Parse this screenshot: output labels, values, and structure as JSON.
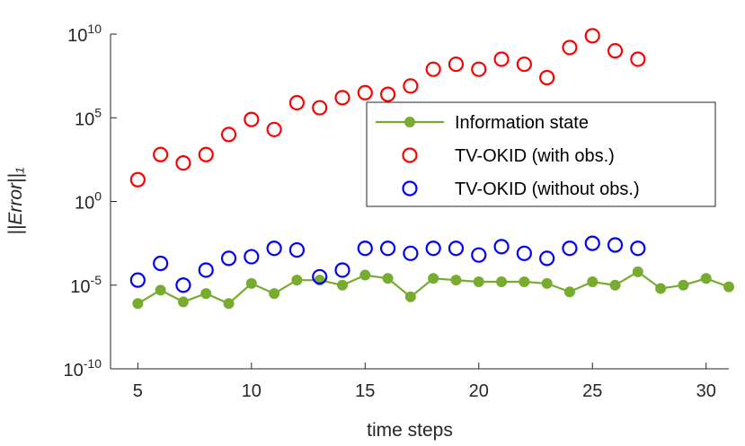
{
  "chart_data": {
    "type": "scatter",
    "title": "",
    "xlabel": "time steps",
    "ylabel": "||Error||₁",
    "xlim": [
      3.8,
      31
    ],
    "ylim_log10": [
      -10,
      10
    ],
    "yscale": "log",
    "x_ticks": [
      5,
      10,
      15,
      20,
      25,
      30
    ],
    "x_tick_labels": [
      "5",
      "10",
      "15",
      "20",
      "25",
      "30"
    ],
    "y_ticks_log10": [
      -10,
      -5,
      0,
      5,
      10
    ],
    "y_tick_base": "10",
    "y_tick_exponents": [
      "-10",
      "-5",
      "0",
      "5",
      "10"
    ],
    "legend_position": "right",
    "series": [
      {
        "name": "Information state",
        "style": "line-marker",
        "color": "#77AC30",
        "x": [
          5,
          6,
          7,
          8,
          9,
          10,
          11,
          12,
          13,
          14,
          15,
          16,
          17,
          18,
          19,
          20,
          21,
          22,
          23,
          24,
          25,
          26,
          27,
          28,
          29,
          30,
          31
        ],
        "log10_y": [
          -6.1,
          -5.3,
          -6.0,
          -5.5,
          -6.1,
          -4.9,
          -5.5,
          -4.7,
          -4.7,
          -5.0,
          -4.4,
          -4.6,
          -5.7,
          -4.6,
          -4.7,
          -4.8,
          -4.8,
          -4.8,
          -4.9,
          -5.4,
          -4.8,
          -5.0,
          -4.2,
          -5.2,
          -5.0,
          -4.6,
          -5.1
        ]
      },
      {
        "name": "TV-OKID (with obs.)",
        "style": "open-circle",
        "color": "#FF0000",
        "x": [
          5,
          6,
          7,
          8,
          9,
          10,
          11,
          12,
          13,
          14,
          15,
          16,
          17,
          18,
          19,
          20,
          21,
          22,
          23,
          24,
          25,
          26,
          27
        ],
        "log10_y": [
          1.3,
          2.8,
          2.3,
          2.8,
          4.0,
          4.9,
          4.3,
          5.9,
          5.6,
          6.2,
          6.5,
          6.4,
          6.9,
          7.9,
          8.2,
          7.9,
          8.5,
          8.2,
          7.4,
          9.2,
          9.9,
          9.0,
          8.5
        ]
      },
      {
        "name": "TV-OKID (without obs.)",
        "style": "open-circle",
        "color": "#0000FF",
        "x": [
          5,
          6,
          7,
          8,
          9,
          10,
          11,
          12,
          13,
          14,
          15,
          16,
          17,
          18,
          19,
          20,
          21,
          22,
          23,
          24,
          25,
          26,
          27
        ],
        "log10_y": [
          -4.7,
          -3.7,
          -5.0,
          -4.1,
          -3.4,
          -3.3,
          -2.8,
          -2.9,
          -4.5,
          -4.1,
          -2.8,
          -2.8,
          -3.1,
          -2.8,
          -2.8,
          -3.2,
          -2.7,
          -3.1,
          -3.4,
          -2.8,
          -2.5,
          -2.6,
          -2.8
        ]
      }
    ]
  }
}
